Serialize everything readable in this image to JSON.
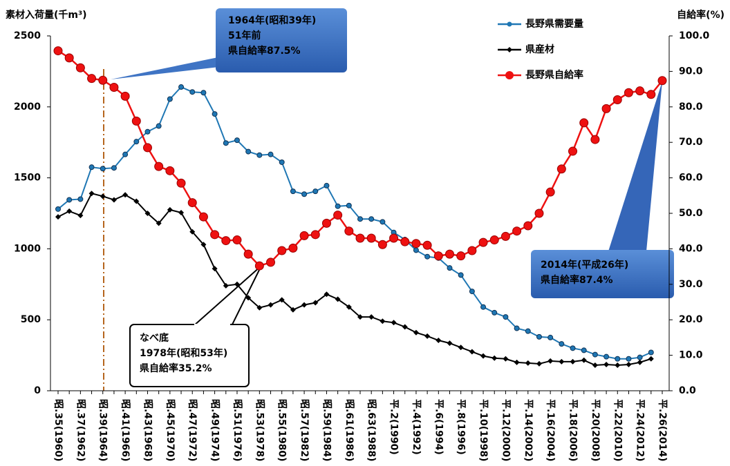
{
  "chart_data": {
    "type": "line",
    "y_label": "素材入荷量(千m³)",
    "y2_label": "自給率(%)",
    "categories": [
      "昭.35(1960)",
      null,
      "昭.37(1962)",
      null,
      "昭.39(1964)",
      null,
      "昭.41(1966)",
      null,
      "昭.43(1968)",
      null,
      "昭.45(1970)",
      null,
      "昭.47(1972)",
      null,
      "昭.49(1974)",
      null,
      "昭.51(1976)",
      null,
      "昭.53(1978)",
      null,
      "昭.55(1980)",
      null,
      "昭.57(1982)",
      null,
      "昭.59(1984)",
      null,
      "昭.61(1986)",
      null,
      "昭.63(1988)",
      null,
      "平.2(1990)",
      null,
      "平.4(1992)",
      null,
      "平.6(1994)",
      null,
      "平.8(1996)",
      null,
      "平.10(1998)",
      null,
      "平.12(2000)",
      null,
      "平.14(2002)",
      null,
      "平.16(2004)",
      null,
      "平.18(2006)",
      null,
      "平.20(2008)",
      null,
      "平.22(2010)",
      null,
      "平.24(2012)",
      null,
      "平.26(2014)"
    ],
    "series": [
      {
        "name": "長野県需要量",
        "color": "#1f77b4",
        "marker": "circle",
        "values": [
          1280,
          1345,
          1350,
          1575,
          1565,
          1570,
          1665,
          1755,
          1825,
          1865,
          2055,
          2140,
          2105,
          2100,
          1950,
          1745,
          1765,
          1685,
          1660,
          1665,
          1610,
          1405,
          1385,
          1405,
          1445,
          1300,
          1305,
          1210,
          1210,
          1190,
          1115,
          1065,
          990,
          945,
          935,
          865,
          815,
          700,
          590,
          550,
          520,
          440,
          420,
          380,
          375,
          330,
          300,
          285,
          255,
          240,
          225,
          225,
          235,
          270,
          null
        ]
      },
      {
        "name": "県産材",
        "color": "#000000",
        "marker": "diamond",
        "values": [
          1225,
          1265,
          1235,
          1390,
          1370,
          1345,
          1380,
          1335,
          1250,
          1180,
          1275,
          1255,
          1120,
          1030,
          860,
          740,
          750,
          655,
          585,
          605,
          640,
          570,
          605,
          620,
          680,
          645,
          590,
          520,
          520,
          490,
          480,
          450,
          410,
          385,
          355,
          335,
          305,
          275,
          245,
          230,
          225,
          200,
          195,
          190,
          210,
          205,
          205,
          215,
          180,
          185,
          180,
          185,
          200,
          225,
          null
        ]
      },
      {
        "name": "長野県自給率",
        "color": "#ee1111",
        "marker": "circle-large",
        "axis": "y2",
        "values": [
          95.8,
          93.8,
          91,
          88,
          87.5,
          85.5,
          83,
          76,
          68.5,
          63.2,
          62,
          58.5,
          53,
          49,
          44,
          42.3,
          42.5,
          38.5,
          35.2,
          36.2,
          39.5,
          40.2,
          43.7,
          44,
          47.2,
          49.5,
          45,
          43,
          43,
          41.2,
          43,
          42,
          41.5,
          41,
          38,
          38.5,
          38,
          39.5,
          41.8,
          42.5,
          43.5,
          45,
          46.5,
          50,
          56,
          62.5,
          67.5,
          75.5,
          70.8,
          79.5,
          82,
          84,
          84.5,
          83.5,
          87.4
        ]
      }
    ],
    "ylim": [
      0,
      2500
    ],
    "yticks": [
      0,
      500,
      1000,
      1500,
      2000,
      2500
    ],
    "y2lim": [
      0,
      100
    ],
    "y2ticks": [
      {
        "value": 0,
        "label": "0.0"
      },
      {
        "value": 10,
        "label": "10.0"
      },
      {
        "value": 20,
        "label": "20.0"
      },
      {
        "value": 30,
        "label": "30.0"
      },
      {
        "value": 40,
        "label": "40.0"
      },
      {
        "value": 50,
        "label": "50.0"
      },
      {
        "value": 60,
        "label": "60.0"
      },
      {
        "value": 70,
        "label": "70.0"
      },
      {
        "value": 80,
        "label": "80.0"
      },
      {
        "value": 90,
        "label": "90.0"
      },
      {
        "value": 100,
        "label": "100.0"
      }
    ],
    "grid": false,
    "legend": "upper right",
    "annotations": [
      {
        "lines": [
          "1964年(昭和39年)",
          "51年前",
          "県自給率87.5%"
        ]
      },
      {
        "lines": [
          "なべ底",
          "1978年(昭和53年)",
          "県自給率35.2%"
        ]
      },
      {
        "lines": [
          "2014年(平成26年)",
          "県自給率87.4%"
        ]
      }
    ]
  }
}
